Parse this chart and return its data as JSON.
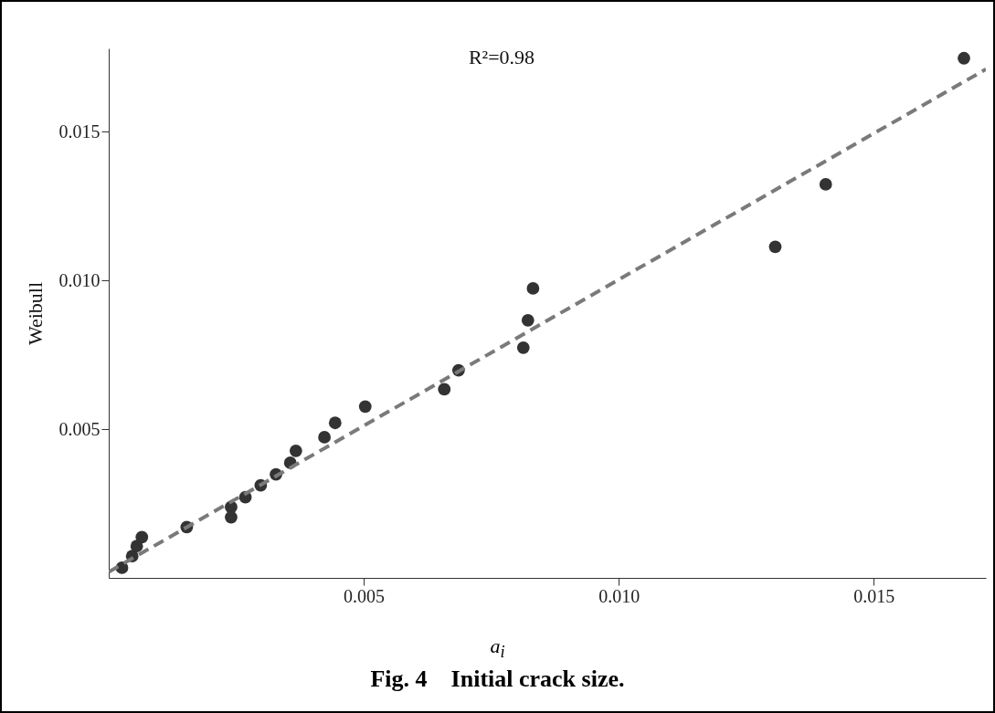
{
  "chart_data": {
    "type": "scatter",
    "xlabel": "a$_{i}$",
    "ylabel": "Weibull",
    "annotations": [
      "R²=0.98",
      "Fig. 4    Initial crack size."
    ],
    "xlim": [
      0,
      0.0172
    ],
    "ylim": [
      0,
      0.0178
    ],
    "xticks": [
      {
        "value": 0.005,
        "label": "0.005"
      },
      {
        "value": 0.01,
        "label": "0.010"
      },
      {
        "value": 0.015,
        "label": "0.015"
      }
    ],
    "yticks": [
      {
        "value": 0.005,
        "label": "0.005"
      },
      {
        "value": 0.01,
        "label": "0.010"
      },
      {
        "value": 0.015,
        "label": "0.015"
      }
    ],
    "grid": false,
    "series": [
      {
        "color": "#333333",
        "marker": "circle",
        "x": [
          0.00026,
          0.00046,
          0.00055,
          0.00065,
          0.00153,
          0.0024,
          0.0024,
          0.00268,
          0.00298,
          0.00328,
          0.00356,
          0.00367,
          0.00423,
          0.00444,
          0.00503,
          0.00658,
          0.00686,
          0.00813,
          0.00822,
          0.00832,
          0.01307,
          0.01406,
          0.01677
        ],
        "values": [
          0.00034,
          0.00073,
          0.00107,
          0.00137,
          0.00171,
          0.00238,
          0.00204,
          0.00271,
          0.00311,
          0.00348,
          0.00387,
          0.00427,
          0.00473,
          0.00521,
          0.00576,
          0.00634,
          0.00698,
          0.00774,
          0.00866,
          0.00973,
          0.01113,
          0.01323,
          0.01747
        ]
      },
      {
        "type": "line",
        "line_style": "dashed",
        "color": "#7a7a7a",
        "x": [
          0,
          0.0172
        ],
        "values": [
          0.0002,
          0.0171
        ]
      }
    ]
  }
}
